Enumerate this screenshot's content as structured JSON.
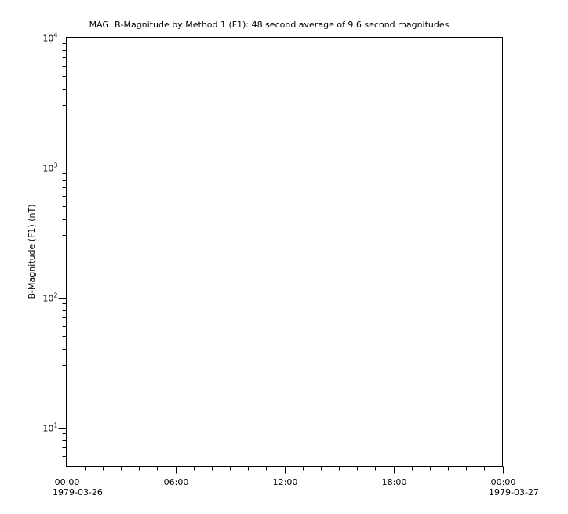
{
  "chart_data": {
    "type": "line",
    "title": "MAG  B-Magnitude by Method 1 (F1): 48 second average of 9.6 second magnitudes",
    "xlabel": "",
    "ylabel": "B-Magnitude (F1) (nT)",
    "x_axis": {
      "range_hours": [
        0,
        24
      ],
      "major_tick_hours": [
        0,
        6,
        12,
        18,
        24
      ],
      "major_tick_labels": [
        "00:00",
        "06:00",
        "12:00",
        "18:00",
        "00:00"
      ],
      "minor_tick_interval_hours": 1,
      "start_date_label": "1979-03-26",
      "end_date_label": "1979-03-27"
    },
    "y_axis": {
      "scale": "log",
      "ylim": [
        5,
        10000
      ],
      "major_ticks": [
        10,
        100,
        1000,
        10000
      ],
      "major_tick_labels": [
        "10^1",
        "10^2",
        "10^3",
        "10^4"
      ],
      "major_tick_exponents": [
        1,
        2,
        3,
        4
      ],
      "minor_ticks_pattern": "multiples 2-9 of each decade"
    },
    "series": [],
    "grid": false,
    "legend": null
  },
  "colors": {
    "background": "#ffffff",
    "axis": "#000000",
    "text": "#000000"
  }
}
